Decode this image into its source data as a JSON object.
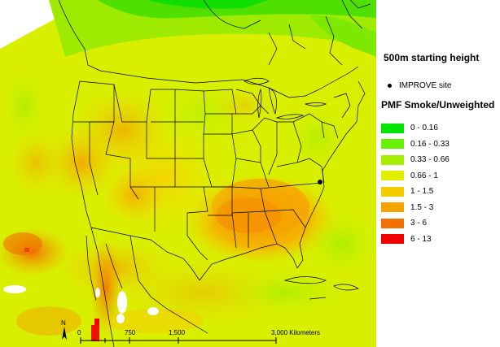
{
  "map": {
    "title": "500m starting height",
    "site_marker_label": "IMPROVE site",
    "legend_title": "PMF Smoke/Unweighted",
    "legend": [
      {
        "label": "0 - 0.16",
        "color": "#00e600"
      },
      {
        "label": "0.16 - 0.33",
        "color": "#66f200"
      },
      {
        "label": "0.33 - 0.66",
        "color": "#a8ee00"
      },
      {
        "label": "0.66 - 1",
        "color": "#e2f000"
      },
      {
        "label": "1 - 1.5",
        "color": "#f5cc00"
      },
      {
        "label": "1.5 - 3",
        "color": "#f5a300"
      },
      {
        "label": "3 - 6",
        "color": "#f27000"
      },
      {
        "label": "6 - 13",
        "color": "#f00000"
      }
    ],
    "scale": {
      "ticks": [
        "0",
        "750",
        "1,500",
        "3,000 Kilometers"
      ]
    },
    "north_label": "N"
  }
}
